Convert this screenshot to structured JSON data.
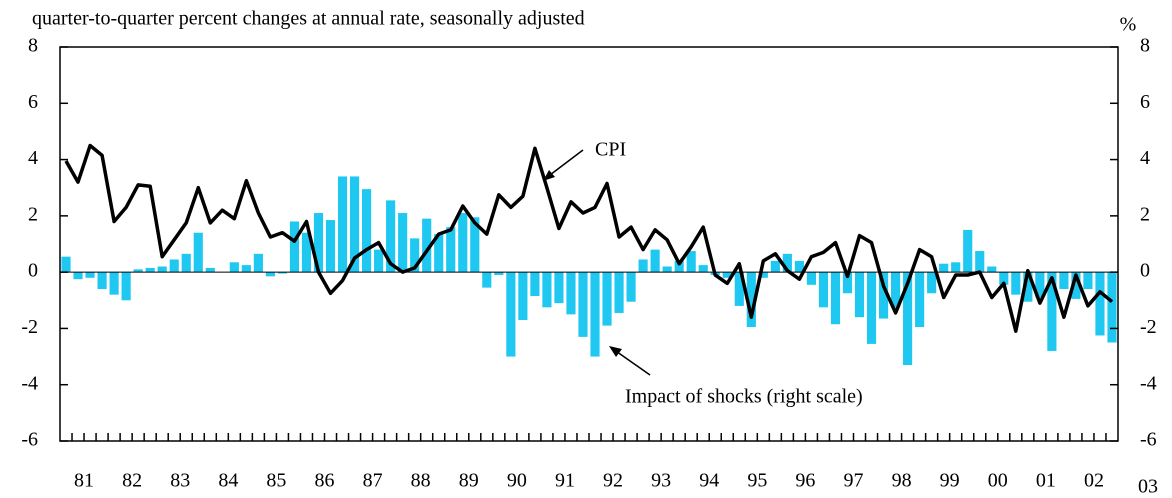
{
  "chart_data": {
    "type": "bar-line",
    "subtitle": "quarter-to-quarter percent changes at annual rate, seasonally adjusted",
    "y2_unit": "%",
    "categories": [
      null,
      null,
      null,
      null,
      null,
      null,
      null,
      null,
      null,
      null,
      null,
      null,
      null,
      null,
      null,
      null,
      null,
      null,
      null,
      null,
      null,
      null,
      null,
      null,
      null,
      null,
      null,
      null,
      null,
      null,
      null,
      null,
      null,
      null,
      null,
      null,
      null,
      null,
      null,
      null,
      null,
      null,
      null,
      null,
      null,
      null,
      null,
      null,
      null,
      null,
      null,
      null,
      null,
      null,
      null,
      null,
      null,
      null,
      null,
      null,
      null,
      null,
      null,
      null,
      null,
      null,
      null,
      null,
      null,
      null,
      null,
      null,
      null,
      null,
      null,
      null,
      null,
      null,
      null,
      null,
      null,
      null,
      null,
      null,
      null,
      null,
      null,
      null
    ],
    "year_labels": [
      "81",
      "82",
      "83",
      "84",
      "85",
      "86",
      "87",
      "88",
      "89",
      "90",
      "91",
      "92",
      "93",
      "94",
      "95",
      "96",
      "97",
      "98",
      "99",
      "00",
      "01",
      "02",
      "03"
    ],
    "series": [
      {
        "name": "CPI",
        "type": "line",
        "color": "#000000",
        "axis": "y",
        "values": [
          3.95,
          3.2,
          4.5,
          4.15,
          1.8,
          2.3,
          3.1,
          3.05,
          0.55,
          1.15,
          1.75,
          3.0,
          1.75,
          2.2,
          1.9,
          3.25,
          2.1,
          1.25,
          1.4,
          1.1,
          1.8,
          0.0,
          -0.75,
          -0.3,
          0.5,
          0.8,
          1.05,
          0.3,
          0.0,
          0.15,
          0.75,
          1.35,
          1.5,
          2.35,
          1.75,
          1.35,
          2.75,
          2.3,
          2.7,
          4.4,
          3.0,
          1.55,
          2.5,
          2.1,
          2.3,
          3.15,
          1.25,
          1.6,
          0.8,
          1.5,
          1.15,
          0.3,
          0.9,
          1.6,
          -0.1,
          -0.4,
          0.3,
          -1.6,
          0.4,
          0.65,
          0.05,
          -0.25,
          0.55,
          0.7,
          1.05,
          -0.15,
          1.3,
          1.05,
          -0.5,
          -1.45,
          -0.4,
          0.8,
          0.55,
          -0.9,
          -0.1,
          -0.1,
          0.0,
          -0.9,
          -0.4,
          -2.1,
          0.05,
          -1.1,
          -0.2,
          -1.6,
          -0.1,
          -1.2,
          -0.7,
          -1.05
        ]
      },
      {
        "name": "Impact of shocks (right scale)",
        "type": "bar",
        "color": "#1ec8f0",
        "axis": "y2",
        "values": [
          0.55,
          -0.25,
          -0.2,
          -0.6,
          -0.8,
          -1.0,
          0.1,
          0.15,
          0.2,
          0.45,
          0.65,
          1.4,
          0.15,
          0,
          0.35,
          0.25,
          0.65,
          -0.15,
          -0.05,
          1.8,
          1.4,
          2.1,
          1.85,
          3.4,
          3.4,
          2.95,
          0.8,
          2.55,
          2.1,
          1.2,
          1.9,
          1.35,
          1.6,
          2.1,
          1.95,
          -0.55,
          -0.1,
          -3.0,
          -1.7,
          -0.85,
          -1.25,
          -1.1,
          -1.5,
          -2.3,
          -3.0,
          -1.9,
          -1.45,
          -1.05,
          0.45,
          0.8,
          0.2,
          0.4,
          0.75,
          0.25,
          -0.1,
          -0.2,
          -1.2,
          -1.95,
          -0.2,
          0.4,
          0.65,
          0.4,
          -0.45,
          -1.25,
          -1.85,
          -0.75,
          -1.6,
          -2.55,
          -1.65,
          -1.25,
          -3.3,
          -1.95,
          -0.75,
          0.3,
          0.35,
          1.5,
          0.75,
          0.2,
          -0.45,
          -0.8,
          -1.05,
          -0.9,
          -2.8,
          -0.6,
          -0.95,
          -0.6,
          -2.25,
          -2.5
        ]
      }
    ],
    "ylim": [
      -6,
      8
    ],
    "yticks": [
      -6,
      -4,
      -2,
      0,
      2,
      4,
      6,
      8
    ],
    "y2lim": [
      -6,
      8
    ],
    "y2ticks": [
      -6,
      -4,
      -2,
      0,
      2,
      4,
      6,
      8
    ]
  }
}
